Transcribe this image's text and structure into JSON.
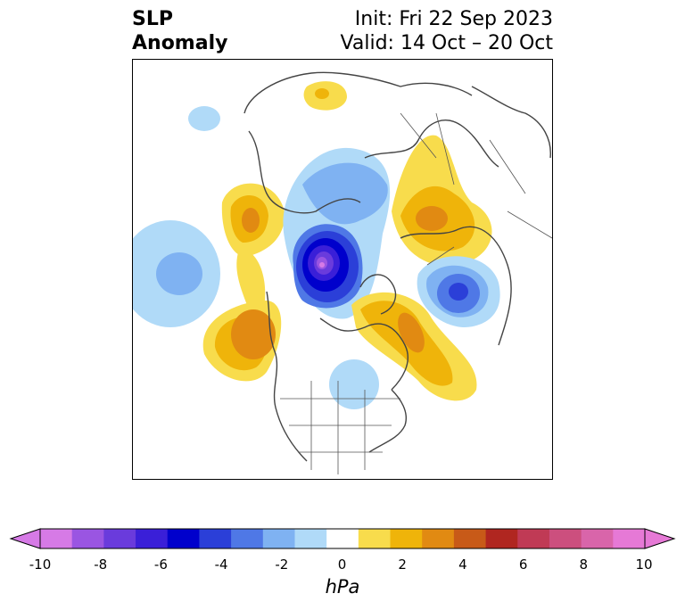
{
  "title": {
    "left_line1": "SLP",
    "left_line2": "Anomaly",
    "right_line1": "Init: Fri 22 Sep 2023",
    "right_line2": "Valid: 14 Oct – 20 Oct"
  },
  "colorbar": {
    "unit": "hPa",
    "tick_labels": [
      "-10",
      "-8",
      "-6",
      "-4",
      "-2",
      "0",
      "2",
      "4",
      "6",
      "8",
      "10"
    ],
    "tick_values": [
      -10,
      -8,
      -6,
      -4,
      -2,
      0,
      2,
      4,
      6,
      8,
      10
    ],
    "extend": "both",
    "colors": [
      "#d67ae6",
      "#9a55e2",
      "#6a3bdc",
      "#3a1fd8",
      "#0000cc",
      "#2b3fd8",
      "#4f78e6",
      "#7fb2f2",
      "#b0daf8",
      "#ffffff",
      "#f8dc4c",
      "#efb40a",
      "#e18a12",
      "#c85a18",
      "#b02620",
      "#c03a55",
      "#cc4f7e",
      "#d965aa",
      "#e679d6"
    ]
  },
  "map": {
    "field": "Sea level pressure anomaly",
    "projection": "polar stereographic (North America / Arctic)",
    "features": [
      {
        "type": "low",
        "region": "Arctic Ocean / Canadian Arctic",
        "min_hPa": -8
      },
      {
        "type": "low",
        "region": "Northeast Pacific",
        "min_hPa": -3
      },
      {
        "type": "low",
        "region": "Norwegian / Barents Sea",
        "min_hPa": -5
      },
      {
        "type": "low",
        "region": "Great Lakes",
        "min_hPa": -2
      },
      {
        "type": "high",
        "region": "Gulf of Alaska / NW Canada coast",
        "max_hPa": 4
      },
      {
        "type": "high",
        "region": "East Siberia / Kamchatka",
        "max_hPa": 4
      },
      {
        "type": "high",
        "region": "Greenland to North Atlantic",
        "max_hPa": 4
      },
      {
        "type": "high",
        "region": "Eastern Siberia north",
        "max_hPa": 3
      }
    ]
  }
}
